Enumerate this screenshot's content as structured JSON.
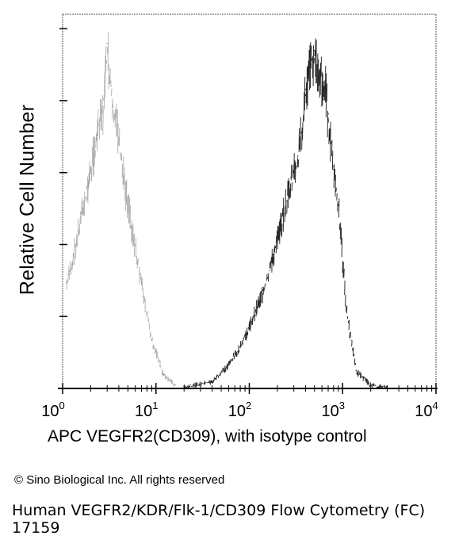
{
  "chart_data": {
    "type": "area",
    "title": "",
    "xlabel": "APC VEGFR2(CD309), with isotype control",
    "ylabel": "Relative Cell Number",
    "x_scale": "log",
    "xlim": [
      1,
      10000
    ],
    "ylim": [
      0,
      1
    ],
    "x_tick_labels": [
      {
        "base": "10",
        "exp": "0"
      },
      {
        "base": "10",
        "exp": "1"
      },
      {
        "base": "10",
        "exp": "2"
      },
      {
        "base": "10",
        "exp": "3"
      },
      {
        "base": "10",
        "exp": "4"
      }
    ],
    "series": [
      {
        "role": "isotype control",
        "color": "#8a8a8a",
        "x": [
          1.1,
          1.3,
          1.6,
          2.0,
          2.3,
          2.7,
          3.0,
          3.3,
          3.8,
          4.5,
          5.5,
          7,
          9,
          12,
          16
        ],
        "y": [
          0.3,
          0.38,
          0.5,
          0.63,
          0.72,
          0.8,
          0.98,
          0.86,
          0.75,
          0.6,
          0.46,
          0.3,
          0.14,
          0.04,
          0.01
        ]
      },
      {
        "role": "APC VEGFR2",
        "color": "#1a1a1a",
        "x": [
          20,
          40,
          60,
          80,
          100,
          140,
          180,
          230,
          280,
          330,
          400,
          450,
          500,
          580,
          650,
          700,
          800,
          900,
          1100,
          1400,
          2000,
          3000
        ],
        "y": [
          0.005,
          0.02,
          0.07,
          0.12,
          0.18,
          0.28,
          0.38,
          0.5,
          0.6,
          0.66,
          0.85,
          0.92,
          0.96,
          0.9,
          0.86,
          0.78,
          0.63,
          0.52,
          0.22,
          0.05,
          0.01,
          0.003
        ]
      }
    ]
  },
  "copyright": "© Sino Biological Inc. All rights reserved",
  "caption": {
    "line1": "Human VEGFR2/KDR/Flk-1/CD309 Flow Cytometry (FC)",
    "line2": "17159"
  }
}
